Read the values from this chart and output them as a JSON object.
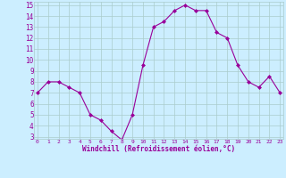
{
  "x": [
    0,
    1,
    2,
    3,
    4,
    5,
    6,
    7,
    8,
    9,
    10,
    11,
    12,
    13,
    14,
    15,
    16,
    17,
    18,
    19,
    20,
    21,
    22,
    23
  ],
  "y": [
    7.0,
    8.0,
    8.0,
    7.5,
    7.0,
    5.0,
    4.5,
    3.5,
    2.7,
    5.0,
    9.5,
    13.0,
    13.5,
    14.5,
    15.0,
    14.5,
    14.5,
    12.5,
    12.0,
    9.5,
    8.0,
    7.5,
    8.5,
    7.0
  ],
  "line_color": "#990099",
  "marker": "D",
  "marker_size": 2.0,
  "bg_color": "#cceeff",
  "grid_color": "#aacccc",
  "xlabel": "Windchill (Refroidissement éolien,°C)",
  "xlabel_color": "#990099",
  "tick_color": "#990099",
  "ylim": [
    3,
    15
  ],
  "xlim": [
    0,
    23
  ],
  "yticks": [
    3,
    4,
    5,
    6,
    7,
    8,
    9,
    10,
    11,
    12,
    13,
    14,
    15
  ],
  "xticks": [
    0,
    1,
    2,
    3,
    4,
    5,
    6,
    7,
    8,
    9,
    10,
    11,
    12,
    13,
    14,
    15,
    16,
    17,
    18,
    19,
    20,
    21,
    22,
    23
  ],
  "figsize": [
    3.2,
    2.0
  ],
  "dpi": 100
}
